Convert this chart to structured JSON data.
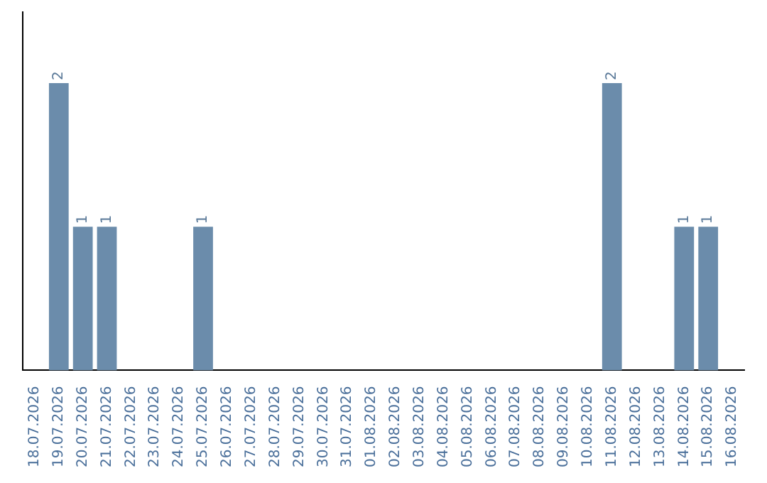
{
  "chart_data": {
    "type": "bar",
    "categories": [
      "18.07.2026",
      "19.07.2026",
      "20.07.2026",
      "21.07.2026",
      "22.07.2026",
      "23.07.2026",
      "24.07.2026",
      "25.07.2026",
      "26.07.2026",
      "27.07.2026",
      "28.07.2026",
      "29.07.2026",
      "30.07.2026",
      "31.07.2026",
      "01.08.2026",
      "02.08.2026",
      "03.08.2026",
      "04.08.2026",
      "05.08.2026",
      "06.08.2026",
      "07.08.2026",
      "08.08.2026",
      "09.08.2026",
      "10.08.2026",
      "11.08.2026",
      "12.08.2026",
      "13.08.2026",
      "14.08.2026",
      "15.08.2026",
      "16.08.2026"
    ],
    "values": [
      0,
      2,
      1,
      1,
      0,
      0,
      0,
      1,
      0,
      0,
      0,
      0,
      0,
      0,
      0,
      0,
      0,
      0,
      0,
      0,
      0,
      0,
      0,
      0,
      2,
      0,
      0,
      1,
      1,
      0
    ],
    "value_labels": [
      null,
      "2",
      "1",
      "1",
      null,
      null,
      null,
      "1",
      null,
      null,
      null,
      null,
      null,
      null,
      null,
      null,
      null,
      null,
      null,
      null,
      null,
      null,
      null,
      null,
      "2",
      null,
      null,
      "1",
      "1",
      null
    ],
    "color": "#6b8cab",
    "grid": false,
    "legend": false
  }
}
